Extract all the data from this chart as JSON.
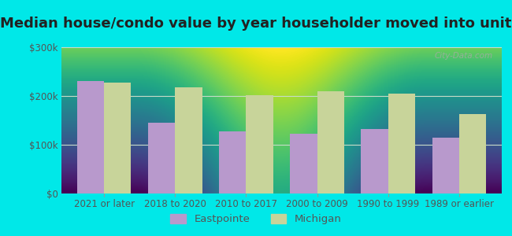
{
  "title": "Median house/condo value by year householder moved into unit",
  "categories": [
    "2021 or later",
    "2018 to 2020",
    "2010 to 2017",
    "2000 to 2009",
    "1990 to 1999",
    "1989 or earlier"
  ],
  "eastpointe_values": [
    230000,
    145000,
    128000,
    123000,
    132000,
    115000
  ],
  "michigan_values": [
    228000,
    218000,
    202000,
    210000,
    205000,
    163000
  ],
  "eastpointe_color": "#b899cc",
  "michigan_color": "#c8d49a",
  "background_outer": "#00e8e8",
  "background_inner_bottom": "#d4ead4",
  "background_inner_top": "#f0f8f0",
  "ylim": [
    0,
    300000
  ],
  "yticks": [
    0,
    100000,
    200000,
    300000
  ],
  "ytick_labels": [
    "$0",
    "$100k",
    "$200k",
    "$300k"
  ],
  "bar_width": 0.38,
  "legend_labels": [
    "Eastpointe",
    "Michigan"
  ],
  "watermark": "City-Data.com",
  "title_fontsize": 13,
  "tick_fontsize": 8.5,
  "legend_fontsize": 9.5,
  "grid_color": "#c8dcc8",
  "tick_label_color": "#555555"
}
